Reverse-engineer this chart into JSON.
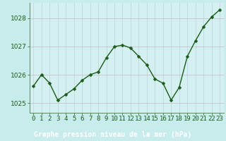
{
  "x": [
    0,
    1,
    2,
    3,
    4,
    5,
    6,
    7,
    8,
    9,
    10,
    11,
    12,
    13,
    14,
    15,
    16,
    17,
    18,
    19,
    20,
    21,
    22,
    23
  ],
  "y": [
    1025.6,
    1026.0,
    1025.7,
    1025.1,
    1025.3,
    1025.5,
    1025.8,
    1026.0,
    1026.1,
    1026.6,
    1027.0,
    1027.05,
    1026.95,
    1026.65,
    1026.35,
    1025.85,
    1025.7,
    1025.1,
    1025.55,
    1026.65,
    1027.2,
    1027.7,
    1028.05,
    1028.3
  ],
  "line_color": "#1a5c1a",
  "marker": "D",
  "marker_size": 2.5,
  "bg_color": "#c8ecec",
  "grid_color": "#b8d8d8",
  "plot_bg_color": "#d4f0f0",
  "xlabel": "Graphe pression niveau de la mer (hPa)",
  "xlabel_color": "#1a5c1a",
  "xlabel_bg": "#1a5c1a",
  "tick_color": "#1a5c1a",
  "ylim": [
    1024.65,
    1028.55
  ],
  "xlim": [
    -0.5,
    23.5
  ],
  "yticks": [
    1025,
    1026,
    1027,
    1028
  ],
  "xticks": [
    0,
    1,
    2,
    3,
    4,
    5,
    6,
    7,
    8,
    9,
    10,
    11,
    12,
    13,
    14,
    15,
    16,
    17,
    18,
    19,
    20,
    21,
    22,
    23
  ],
  "xtick_labels": [
    "0",
    "1",
    "2",
    "3",
    "4",
    "5",
    "6",
    "7",
    "8",
    "9",
    "10",
    "11",
    "12",
    "13",
    "14",
    "15",
    "16",
    "17",
    "18",
    "19",
    "20",
    "21",
    "22",
    "23"
  ],
  "axis_color": "#5a8a5a",
  "font_size_xlabel": 7.0,
  "font_size_ticks": 6.5,
  "bottom_bar_color": "#2e6b2e",
  "bottom_text_color": "#c8ecec",
  "grid_color_v": "#c0d8d8",
  "grid_color_h": "#c0c8d0"
}
